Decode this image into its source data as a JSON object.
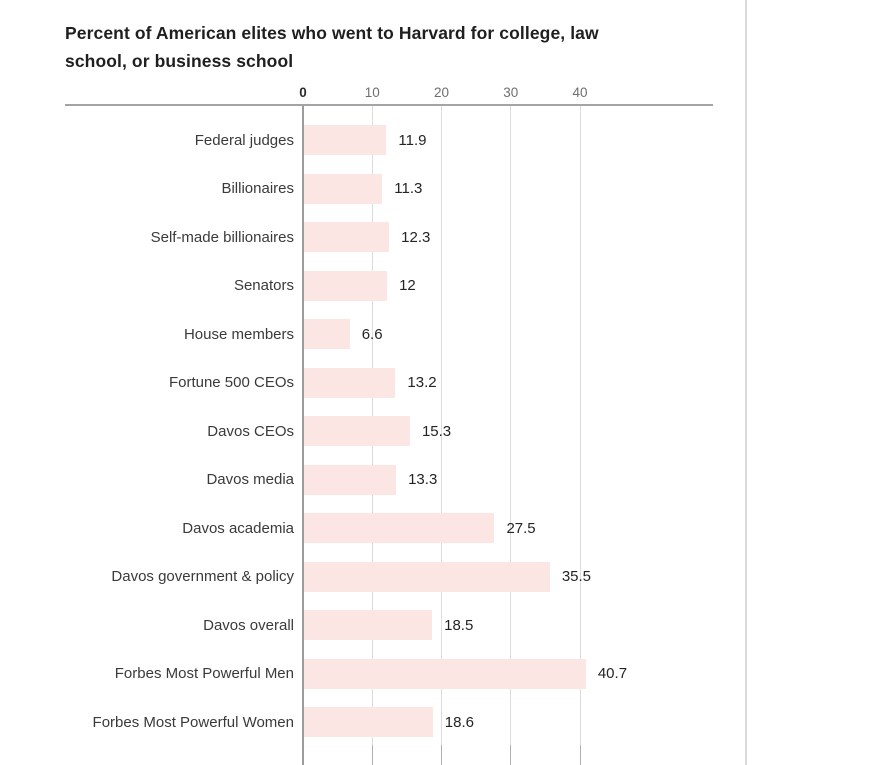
{
  "page": {
    "background": "#ffffff"
  },
  "chart_data": {
    "type": "bar",
    "orientation": "horizontal",
    "title": "Percent of American elites who went to Harvard for college, law\nschool, or business school",
    "categories": [
      "Federal judges",
      "Billionaires",
      "Self-made billionaires",
      "Senators",
      "House members",
      "Fortune 500 CEOs",
      "Davos CEOs",
      "Davos media",
      "Davos academia",
      "Davos government & policy",
      "Davos overall",
      "Forbes Most Powerful Men",
      "Forbes Most Powerful Women"
    ],
    "values": [
      11.9,
      11.3,
      12.3,
      12,
      6.6,
      13.2,
      15.3,
      13.3,
      27.5,
      35.5,
      18.5,
      40.7,
      18.6
    ],
    "value_labels": [
      "11.9",
      "11.3",
      "12.3",
      "12",
      "6.6",
      "13.2",
      "15.3",
      "13.3",
      "27.5",
      "35.5",
      "18.5",
      "40.7",
      "18.6"
    ],
    "x_ticks": [
      0,
      10,
      20,
      30,
      40
    ],
    "xlim": [
      0,
      47.5
    ],
    "grid": true,
    "legend": "none",
    "xlabel": "",
    "ylabel": "",
    "colors": {
      "bar_fill": "#fbe6e3",
      "gridline": "#dcdcdc",
      "zero_axis": "#9c9c9c",
      "axis_line": "#a4a4a4",
      "title_text": "#1f1f1f",
      "category_text": "#3a3a3a",
      "value_text": "#242424",
      "tick_text": "#6e6e6e",
      "divider": "#d9d9d9"
    }
  }
}
